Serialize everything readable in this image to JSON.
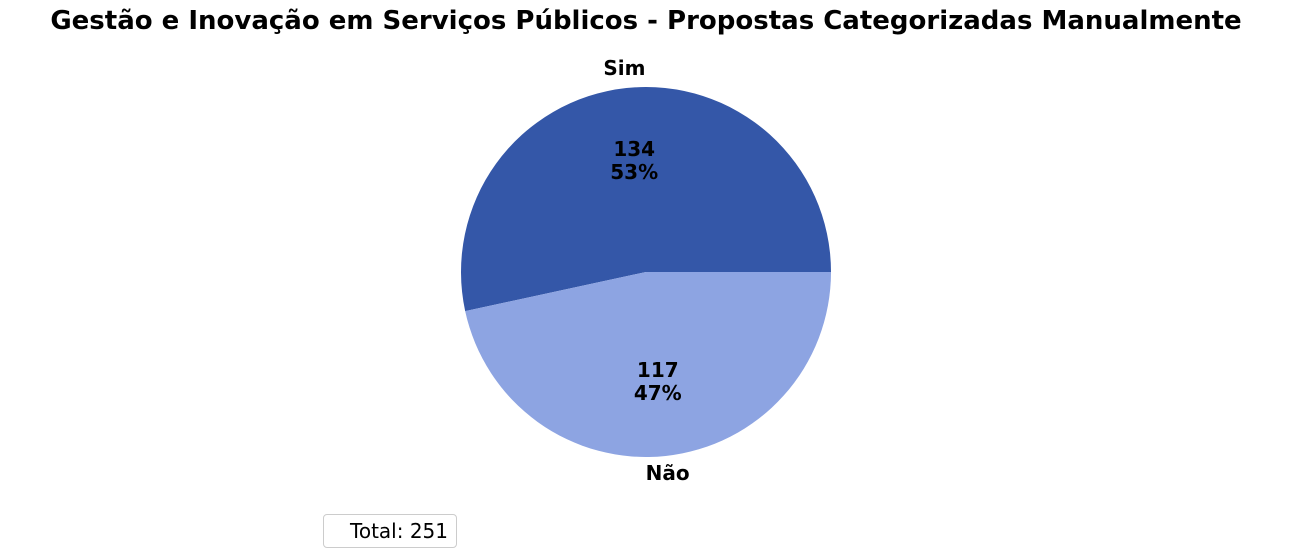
{
  "chart_data": {
    "type": "pie",
    "title": "Gestão e Inovação em Serviços Públicos - Propostas Categorizadas Manualmente",
    "categories": [
      "Sim",
      "Não"
    ],
    "values": [
      134,
      117
    ],
    "percent_labels": [
      "53%",
      "47%"
    ],
    "colors": [
      "#3457a8",
      "#8da4e2"
    ],
    "legend_text": "Total: 251",
    "total": 251,
    "start_angle": "0 degrees (3 o'clock), counter-clockwise"
  }
}
